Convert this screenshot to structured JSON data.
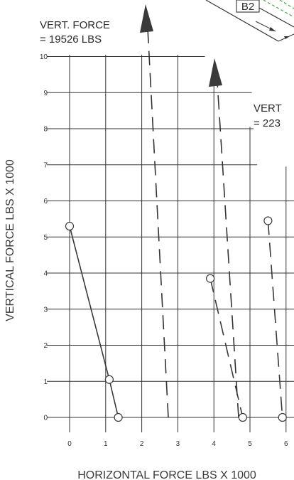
{
  "chart_data": {
    "type": "line",
    "xlabel": "HORIZONTAL FORCE LBS X 1000",
    "ylabel": "VERTICAL FORCE LBS X 1000",
    "x_ticks": [
      "0",
      "1",
      "2",
      "3",
      "4",
      "5",
      "6"
    ],
    "y_ticks": [
      "0",
      "1",
      "2",
      "3",
      "4",
      "5",
      "6",
      "7",
      "8",
      "9",
      "10"
    ],
    "xlim": [
      0,
      6
    ],
    "ylim": [
      0,
      10
    ],
    "grid": true,
    "series": [
      {
        "style": "solid",
        "points": [
          [
            0,
            5.3
          ],
          [
            1.1,
            1.05
          ],
          [
            1.35,
            0
          ]
        ]
      },
      {
        "style": "dashed",
        "points": [
          [
            3.9,
            3.85
          ],
          [
            4.8,
            0
          ]
        ]
      },
      {
        "style": "dashed",
        "points": [
          [
            5.5,
            5.45
          ],
          [
            5.9,
            0
          ]
        ]
      }
    ],
    "colors": {
      "lines": "#3a3a3a",
      "grid": "#333333",
      "diagram": "#2a9a2a"
    }
  },
  "annotations": {
    "force_1": {
      "line1": "VERT. FORCE",
      "line2": "= 19526 LBS"
    },
    "force_2": {
      "line1": "VERT",
      "line2": "= 223"
    },
    "part_label": "B2"
  }
}
